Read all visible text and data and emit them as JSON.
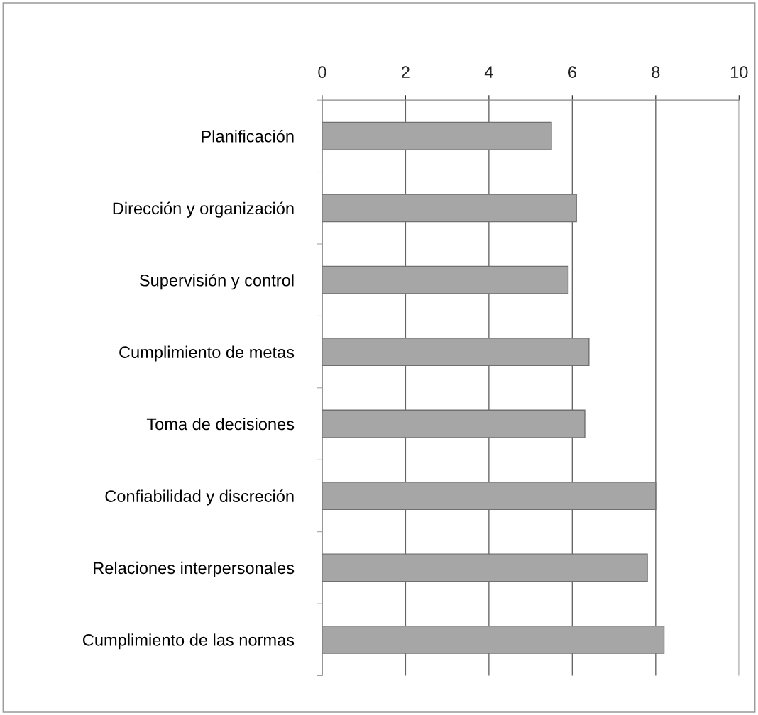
{
  "chart_data": {
    "type": "bar",
    "orientation": "horizontal",
    "categories": [
      "Planificación",
      "Dirección y organización",
      "Supervisión y control",
      "Cumplimiento de metas",
      "Toma de decisiones",
      "Confiabilidad y discreción",
      "Relaciones interpersonales",
      "Cumplimiento de las normas"
    ],
    "values": [
      5.5,
      6.1,
      5.9,
      6.4,
      6.3,
      8.0,
      7.8,
      8.2
    ],
    "color": "#a6a6a6",
    "xlim": [
      0,
      10
    ],
    "xticks": [
      0,
      2,
      4,
      6,
      8,
      10
    ],
    "grid": "x"
  }
}
